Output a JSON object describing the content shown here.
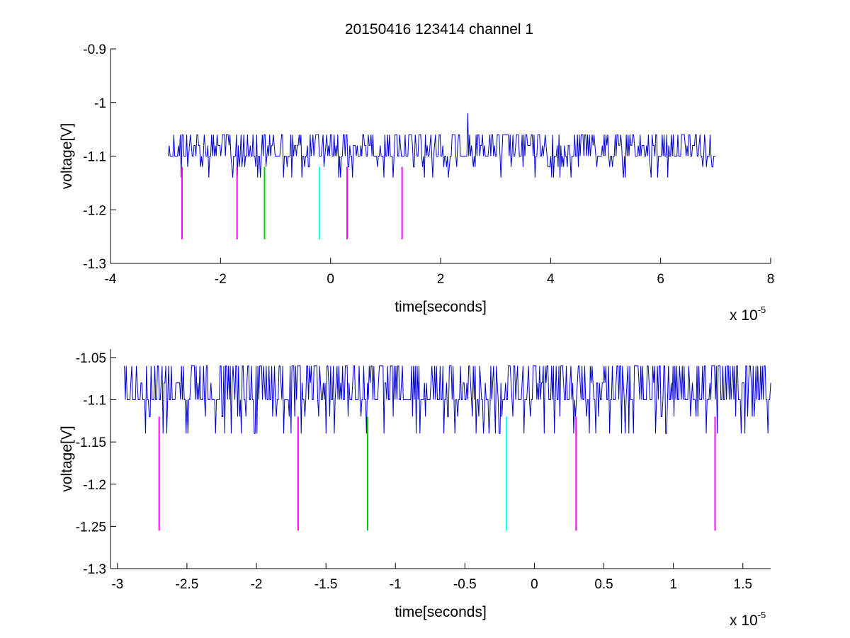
{
  "title": "20150416 123414 channel 1",
  "colors": {
    "trace": "#0000cc",
    "magenta": "#ff00ff",
    "green": "#00cc00",
    "cyan": "#00ffff",
    "axes": "#000000"
  },
  "chart_data": [
    {
      "type": "line",
      "title": "20150416 123414 channel 1",
      "xlabel": "time[seconds]",
      "ylabel": "voltage[V]",
      "x_multiplier_label": "x 10",
      "x_multiplier_exponent": "-5",
      "x_scale": 1e-05,
      "xlim": [
        -4,
        8
      ],
      "ylim": [
        -1.3,
        -0.9
      ],
      "xticks": [
        -4,
        -2,
        0,
        2,
        4,
        6,
        8
      ],
      "xtick_labels": [
        "-4",
        "-2",
        "0",
        "2",
        "4",
        "6",
        "8"
      ],
      "yticks": [
        -1.3,
        -1.2,
        -1.1,
        -1.0,
        -0.9
      ],
      "ytick_labels": [
        "-1.3",
        "-1.2",
        "-1.1",
        "-1",
        "-0.9"
      ],
      "grid": false,
      "trace": {
        "x_range": [
          -2.95,
          7.0
        ],
        "baseline": -1.1,
        "levels": [
          -1.14,
          -1.12,
          -1.1,
          -1.08,
          -1.06
        ],
        "spike": {
          "x": 2.5,
          "y": -1.02
        }
      },
      "markers": [
        {
          "x": -2.7,
          "y_top": -1.12,
          "y_bottom": -1.255,
          "color": "magenta"
        },
        {
          "x": -1.7,
          "y_top": -1.12,
          "y_bottom": -1.255,
          "color": "magenta"
        },
        {
          "x": -1.2,
          "y_top": -1.12,
          "y_bottom": -1.255,
          "color": "green"
        },
        {
          "x": -0.2,
          "y_top": -1.12,
          "y_bottom": -1.255,
          "color": "cyan"
        },
        {
          "x": 0.3,
          "y_top": -1.12,
          "y_bottom": -1.255,
          "color": "magenta"
        },
        {
          "x": 1.3,
          "y_top": -1.12,
          "y_bottom": -1.255,
          "color": "magenta"
        }
      ]
    },
    {
      "type": "line",
      "xlabel": "time[seconds]",
      "ylabel": "voltage[V]",
      "x_multiplier_label": "x 10",
      "x_multiplier_exponent": "-5",
      "x_scale": 1e-05,
      "xlim": [
        -3.05,
        1.7
      ],
      "ylim": [
        -1.3,
        -1.04
      ],
      "xticks": [
        -3,
        -2.5,
        -2,
        -1.5,
        -1,
        -0.5,
        0,
        0.5,
        1,
        1.5
      ],
      "xtick_labels": [
        "-3",
        "-2.5",
        "-2",
        "-1.5",
        "-1",
        "-0.5",
        "0",
        "0.5",
        "1",
        "1.5"
      ],
      "yticks": [
        -1.3,
        -1.25,
        -1.2,
        -1.15,
        -1.1,
        -1.05
      ],
      "ytick_labels": [
        "-1.3",
        "-1.25",
        "-1.2",
        "-1.15",
        "-1.1",
        "-1.05"
      ],
      "grid": false,
      "trace": {
        "x_range": [
          -2.95,
          1.7
        ],
        "baseline": -1.1,
        "levels": [
          -1.14,
          -1.12,
          -1.1,
          -1.08,
          -1.06
        ]
      },
      "markers": [
        {
          "x": -2.7,
          "y_top": -1.12,
          "y_bottom": -1.255,
          "color": "magenta"
        },
        {
          "x": -1.7,
          "y_top": -1.12,
          "y_bottom": -1.255,
          "color": "magenta"
        },
        {
          "x": -1.2,
          "y_top": -1.12,
          "y_bottom": -1.255,
          "color": "green"
        },
        {
          "x": -0.2,
          "y_top": -1.12,
          "y_bottom": -1.255,
          "color": "cyan"
        },
        {
          "x": 0.3,
          "y_top": -1.12,
          "y_bottom": -1.255,
          "color": "magenta"
        },
        {
          "x": 1.3,
          "y_top": -1.12,
          "y_bottom": -1.255,
          "color": "magenta"
        }
      ]
    }
  ]
}
